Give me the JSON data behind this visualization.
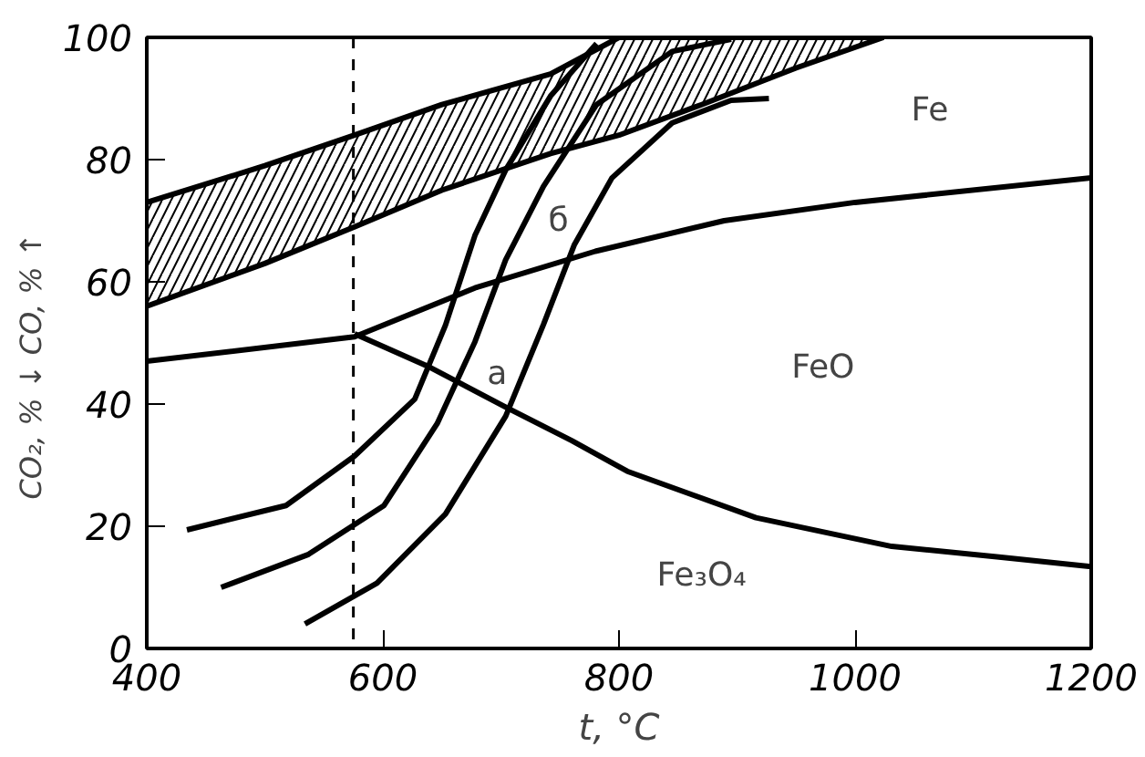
{
  "chart_data": {
    "type": "line",
    "xlabel": "t, °C",
    "ylabel": "CO₂, % ↓      CO, % ↑",
    "xlim": [
      400,
      1200
    ],
    "ylim": [
      0,
      100
    ],
    "xticks": [
      400,
      600,
      800,
      1000,
      1200
    ],
    "yticks": [
      0,
      20,
      40,
      60,
      80,
      100
    ],
    "grid": false,
    "marker": "none",
    "line_style": "solid",
    "series": [
      {
        "color": "#000000",
        "x": [
          400,
          500,
          576,
          650,
          742,
          800,
          870,
          950,
          1024
        ],
        "values": [
          73,
          79,
          84,
          89,
          94,
          100,
          100,
          100,
          100
        ],
        "upper": [
          73,
          79,
          84,
          89,
          94,
          100,
          100,
          100,
          100
        ],
        "lower": [
          56,
          63,
          69,
          75,
          81,
          84,
          89,
          95,
          100
        ]
      },
      {
        "color": "#000000",
        "x": [
          400,
          500,
          576,
          650,
          742,
          800,
          870,
          950,
          1024
        ],
        "values": [
          56,
          63,
          69,
          75,
          81,
          84,
          89,
          95,
          100
        ]
      },
      {
        "color": "#000000",
        "x": [
          400,
          576,
          678,
          780,
          889,
          1000,
          1200
        ],
        "values": [
          47,
          51,
          59,
          65,
          70,
          73,
          77
        ]
      },
      {
        "color": "#000000",
        "x": [
          576,
          640,
          704,
          760,
          807,
          916,
          1031,
          1120,
          1200
        ],
        "values": [
          51.5,
          46,
          39.5,
          34,
          29,
          21.4,
          16.7,
          15,
          13.4
        ]
      },
      {
        "color": "#000000",
        "x": [
          434,
          518,
          576,
          627,
          653,
          678,
          704,
          742,
          781
        ],
        "values": [
          19.4,
          23.4,
          31.5,
          40.8,
          52.9,
          67.6,
          78.3,
          90.4,
          99
        ]
      },
      {
        "color": "#000000",
        "x": [
          463,
          537,
          601,
          646,
          678,
          704,
          736,
          781,
          845,
          895
        ],
        "values": [
          10,
          15.4,
          23.4,
          36.8,
          50.2,
          63.6,
          75.6,
          89,
          97.7,
          99.7
        ]
      },
      {
        "color": "#000000",
        "x": [
          534,
          595,
          653,
          704,
          736,
          762,
          794,
          845,
          895,
          927
        ],
        "values": [
          4,
          10.7,
          22,
          38,
          53,
          66,
          77,
          86,
          89.7,
          90
        ]
      }
    ],
    "ref_lines": [
      {
        "axis": "x",
        "value": 575,
        "line_style": "dashed",
        "color": "#000000"
      }
    ],
    "annotations": [
      "б",
      "a",
      "Fe",
      "FeO",
      "Fe₃O₄"
    ]
  }
}
